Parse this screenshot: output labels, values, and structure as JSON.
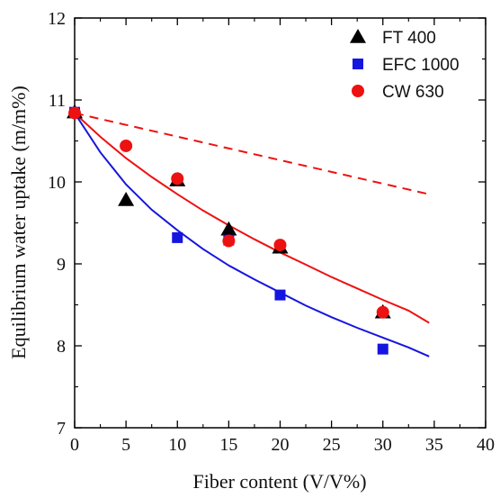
{
  "chart_data": {
    "type": "scatter",
    "xlabel": "Fiber content (V/V%)",
    "ylabel": "Equilibrium water uptake (m/m%)",
    "xlim": [
      0,
      40
    ],
    "ylim": [
      7,
      12
    ],
    "x_ticks": [
      0,
      5,
      10,
      15,
      20,
      25,
      30,
      35,
      40
    ],
    "y_ticks": [
      7,
      8,
      9,
      10,
      11,
      12
    ],
    "grid": false,
    "legend_position": "top-right",
    "series": [
      {
        "name": "FT 400",
        "marker": "triangle",
        "color": "#000000",
        "x": [
          0,
          5,
          10,
          15,
          20,
          30
        ],
        "y": [
          10.85,
          9.78,
          10.02,
          9.42,
          9.2,
          8.41
        ]
      },
      {
        "name": "EFC 1000",
        "marker": "square",
        "color": "#1515e0",
        "x": [
          0,
          10,
          15,
          20,
          30
        ],
        "y": [
          10.85,
          9.32,
          9.29,
          8.62,
          7.96
        ]
      },
      {
        "name": "CW 630",
        "marker": "circle",
        "color": "#ee1111",
        "x": [
          0,
          5,
          10,
          15,
          20,
          30
        ],
        "y": [
          10.84,
          10.44,
          10.04,
          9.28,
          9.23,
          8.41
        ]
      }
    ],
    "fit_lines": [
      {
        "color": "#1515e0",
        "style": "solid",
        "x": [
          0,
          2.5,
          5,
          7.5,
          10,
          12.5,
          15,
          17.5,
          20,
          22.5,
          25,
          27.5,
          30,
          32.5,
          34.5
        ],
        "y": [
          10.84,
          10.36,
          9.97,
          9.66,
          9.41,
          9.18,
          8.98,
          8.81,
          8.65,
          8.49,
          8.35,
          8.22,
          8.1,
          7.98,
          7.87
        ]
      },
      {
        "color": "#ee1111",
        "style": "solid",
        "x": [
          0,
          2.5,
          5,
          7.5,
          10,
          12.5,
          15,
          17.5,
          20,
          22.5,
          25,
          27.5,
          30,
          32.5,
          34.5
        ],
        "y": [
          10.84,
          10.55,
          10.29,
          10.06,
          9.85,
          9.65,
          9.47,
          9.3,
          9.14,
          8.99,
          8.84,
          8.7,
          8.56,
          8.43,
          8.28
        ]
      },
      {
        "color": "#ee1111",
        "style": "dashed",
        "x": [
          0,
          34.5
        ],
        "y": [
          10.84,
          9.85
        ]
      }
    ]
  }
}
